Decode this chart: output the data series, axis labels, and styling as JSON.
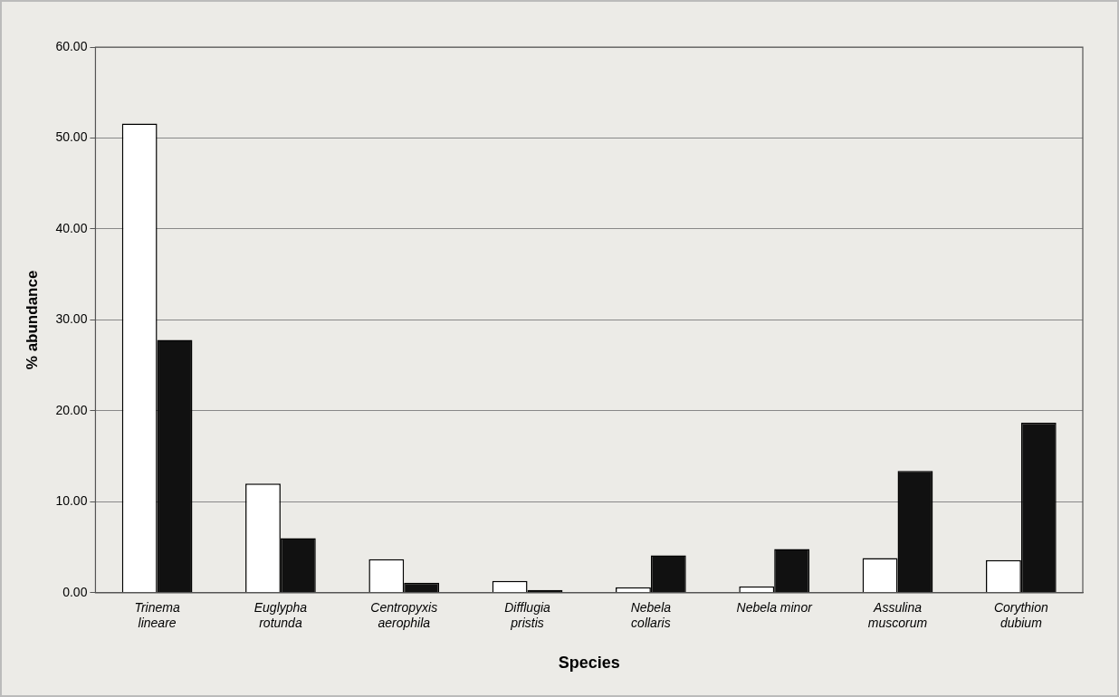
{
  "chart_data": {
    "type": "bar",
    "xlabel": "Species",
    "ylabel": "% abundance",
    "categories": [
      "Trinema lineare",
      "Euglypha rotunda",
      "Centropyxis aerophila",
      "Difflugia pristis",
      "Nebela collaris",
      "Nebela minor",
      "Assulina muscorum",
      "Corythion dubium"
    ],
    "series": [
      {
        "color": "#ffffff",
        "values": [
          51.6,
          12.0,
          3.7,
          1.3,
          0.6,
          0.7,
          3.8,
          3.6
        ]
      },
      {
        "color": "#111111",
        "values": [
          27.8,
          6.0,
          1.1,
          0.3,
          4.1,
          4.8,
          13.4,
          18.7
        ]
      }
    ],
    "ylim": [
      0,
      60
    ],
    "yticks": [
      {
        "value": 0,
        "label": "0.00"
      },
      {
        "value": 10,
        "label": "10.00"
      },
      {
        "value": 20,
        "label": "20.00"
      },
      {
        "value": 30,
        "label": "30.00"
      },
      {
        "value": 40,
        "label": "40.00"
      },
      {
        "value": 50,
        "label": "50.00"
      },
      {
        "value": 60,
        "label": "60.00"
      }
    ],
    "grid": "y",
    "legend": false
  }
}
